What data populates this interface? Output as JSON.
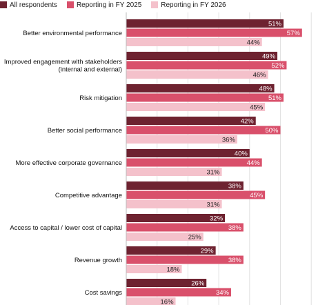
{
  "chart_data": {
    "type": "bar",
    "orientation": "horizontal",
    "categories": [
      [
        "Better environmental performance"
      ],
      [
        "Improved engagement with stakeholders",
        "(internal and external)"
      ],
      [
        "Risk mitigation"
      ],
      [
        "Better social performance"
      ],
      [
        "More effective corporate governance"
      ],
      [
        "Competitive advantage"
      ],
      [
        "Access to capital / lower cost of capital"
      ],
      [
        "Revenue growth"
      ],
      [
        "Cost savings"
      ]
    ],
    "series": [
      {
        "name": "All respondents",
        "color": "#6e2230",
        "label_color": "#ffffff",
        "values": [
          51,
          49,
          48,
          42,
          40,
          38,
          32,
          29,
          26
        ]
      },
      {
        "name": "Reporting in FY 2025",
        "color": "#d9506b",
        "label_color": "#ffffff",
        "values": [
          57,
          52,
          51,
          50,
          44,
          45,
          38,
          38,
          34
        ]
      },
      {
        "name": "Reporting in FY 2026",
        "color": "#f4c1cb",
        "label_color": "#222222",
        "values": [
          44,
          46,
          45,
          36,
          31,
          31,
          25,
          18,
          16
        ]
      }
    ],
    "value_suffix": "%",
    "xlim": [
      0,
      60
    ],
    "grid": true,
    "legend_position": "top-left"
  }
}
